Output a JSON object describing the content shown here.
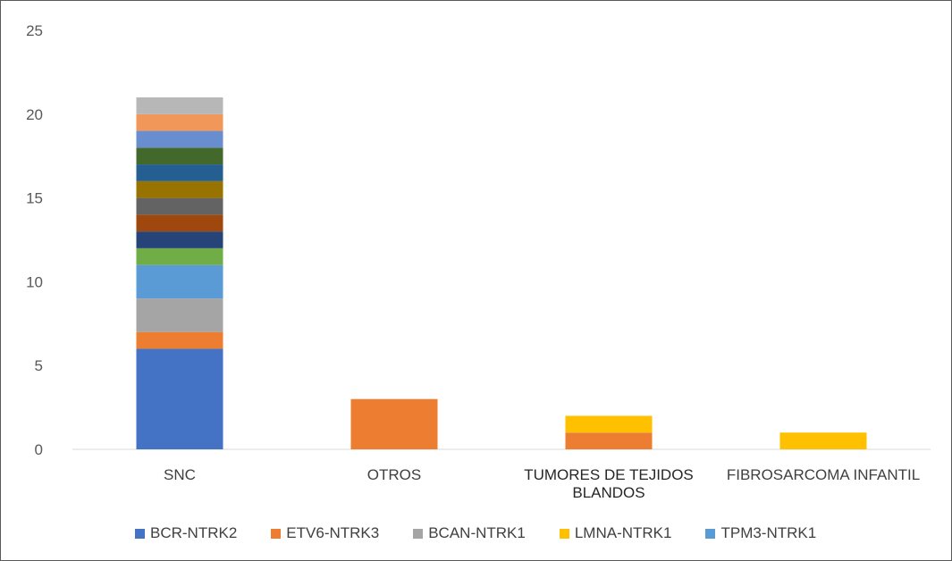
{
  "chart_data": {
    "type": "bar",
    "stacked": true,
    "categories": [
      "SNC",
      "OTROS",
      "TUMORES DE TEJIDOS BLANDOS",
      "FIBROSARCOMA INFANTIL"
    ],
    "category_lines": [
      [
        "SNC"
      ],
      [
        "OTROS"
      ],
      [
        "TUMORES DE TEJIDOS",
        "BLANDOS"
      ],
      [
        "FIBROSARCOMA INFANTIL"
      ]
    ],
    "ylim": [
      0,
      25
    ],
    "yticks": [
      0,
      5,
      10,
      15,
      20,
      25
    ],
    "grid": false,
    "legend_position": "bottom",
    "series": [
      {
        "name": "BCR-NTRK2",
        "color": "#4472c4",
        "values": [
          6,
          0,
          0,
          0
        ]
      },
      {
        "name": "ETV6-NTRK3",
        "color": "#ed7d31",
        "values": [
          1,
          3,
          1,
          0
        ]
      },
      {
        "name": "BCAN-NTRK1",
        "color": "#a5a5a5",
        "values": [
          2,
          0,
          0,
          0
        ]
      },
      {
        "name": "LMNA-NTRK1",
        "color": "#ffc000",
        "values": [
          0,
          0,
          1,
          1
        ]
      },
      {
        "name": "TPM3-NTRK1",
        "color": "#5b9bd5",
        "values": [
          2,
          0,
          0,
          0
        ]
      },
      {
        "name": "",
        "color": "#70ad47",
        "values": [
          1,
          0,
          0,
          0
        ]
      },
      {
        "name": "",
        "color": "#264478",
        "values": [
          1,
          0,
          0,
          0
        ]
      },
      {
        "name": "",
        "color": "#9e480e",
        "values": [
          1,
          0,
          0,
          0
        ]
      },
      {
        "name": "",
        "color": "#636363",
        "values": [
          1,
          0,
          0,
          0
        ]
      },
      {
        "name": "",
        "color": "#997300",
        "values": [
          1,
          0,
          0,
          0
        ]
      },
      {
        "name": "",
        "color": "#255e91",
        "values": [
          1,
          0,
          0,
          0
        ]
      },
      {
        "name": "",
        "color": "#43682b",
        "values": [
          1,
          0,
          0,
          0
        ]
      },
      {
        "name": "",
        "color": "#698ed0",
        "values": [
          1,
          0,
          0,
          0
        ]
      },
      {
        "name": "",
        "color": "#f1975a",
        "values": [
          1,
          0,
          0,
          0
        ]
      },
      {
        "name": "",
        "color": "#b7b7b7",
        "values": [
          1,
          0,
          0,
          0
        ]
      }
    ]
  }
}
